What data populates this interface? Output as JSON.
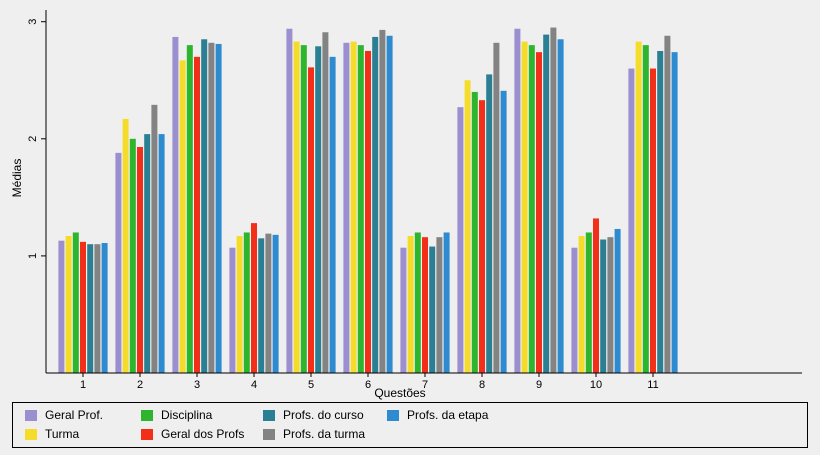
{
  "chart_data": {
    "type": "bar",
    "categories": [
      "1",
      "2",
      "3",
      "4",
      "5",
      "6",
      "7",
      "8",
      "9",
      "10",
      "11"
    ],
    "xlabel": "Questões",
    "ylabel": "Médias",
    "ylim": [
      0,
      3.1
    ],
    "yticks": [
      "1",
      "2",
      "3"
    ],
    "grid": false,
    "legend_position": "bottom",
    "series": [
      {
        "name": "Geral Prof.",
        "color": "#9b8fd0",
        "values": [
          1.13,
          1.88,
          2.87,
          1.07,
          2.94,
          2.82,
          1.07,
          2.27,
          2.94,
          1.07,
          2.6
        ]
      },
      {
        "name": "Turma",
        "color": "#f5dc2a",
        "values": [
          1.17,
          2.17,
          2.67,
          1.17,
          2.83,
          2.83,
          1.17,
          2.5,
          2.83,
          1.17,
          2.83
        ]
      },
      {
        "name": "Disciplina",
        "color": "#2eb52e",
        "values": [
          1.2,
          2.0,
          2.8,
          1.2,
          2.8,
          2.8,
          1.2,
          2.4,
          2.8,
          1.2,
          2.8
        ]
      },
      {
        "name": "Geral dos Profs",
        "color": "#f2301a",
        "values": [
          1.12,
          1.93,
          2.7,
          1.28,
          2.61,
          2.75,
          1.16,
          2.33,
          2.74,
          1.32,
          2.6
        ]
      },
      {
        "name": "Profs. do curso",
        "color": "#2b7f92",
        "values": [
          1.1,
          2.04,
          2.85,
          1.15,
          2.79,
          2.87,
          1.08,
          2.55,
          2.89,
          1.14,
          2.75
        ]
      },
      {
        "name": "Profs. da turma",
        "color": "#838383",
        "values": [
          1.1,
          2.29,
          2.82,
          1.19,
          2.91,
          2.93,
          1.16,
          2.82,
          2.95,
          1.16,
          2.88
        ]
      },
      {
        "name": "Profs. da etapa",
        "color": "#2e8bcf",
        "values": [
          1.11,
          2.04,
          2.81,
          1.18,
          2.7,
          2.88,
          1.2,
          2.41,
          2.85,
          1.23,
          2.74
        ]
      }
    ]
  }
}
